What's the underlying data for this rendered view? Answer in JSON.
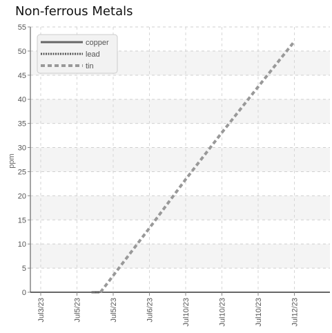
{
  "chart_data": {
    "type": "line",
    "title": "Non-ferrous Metals",
    "xlabel": "",
    "ylabel": "ppm",
    "ylim": [
      0,
      55
    ],
    "yticks": [
      0,
      5,
      10,
      15,
      20,
      25,
      30,
      35,
      40,
      45,
      50,
      55
    ],
    "x_tick_labels": [
      "Jul3/23",
      "Jul5/23",
      "Jul5/23",
      "Jul6/23",
      "Jul10/23",
      "Jul10/23",
      "Jul10/23",
      "Jul12/23"
    ],
    "legend_position": "top-left",
    "grid": true,
    "series": [
      {
        "name": "copper",
        "color": "#666666",
        "style": "solid",
        "points": [
          [
            1.4,
            0
          ],
          [
            1.62,
            0
          ]
        ]
      },
      {
        "name": "lead",
        "color": "#555555",
        "style": "dotted",
        "points": [
          [
            1.5,
            0
          ],
          [
            1.6,
            0
          ]
        ]
      },
      {
        "name": "tin",
        "color": "#999999",
        "style": "dashed",
        "points": [
          [
            1.65,
            0
          ],
          [
            3,
            13.3
          ],
          [
            4,
            23.4
          ],
          [
            5,
            33.1
          ],
          [
            6,
            42.6
          ],
          [
            7,
            52
          ]
        ]
      }
    ]
  }
}
